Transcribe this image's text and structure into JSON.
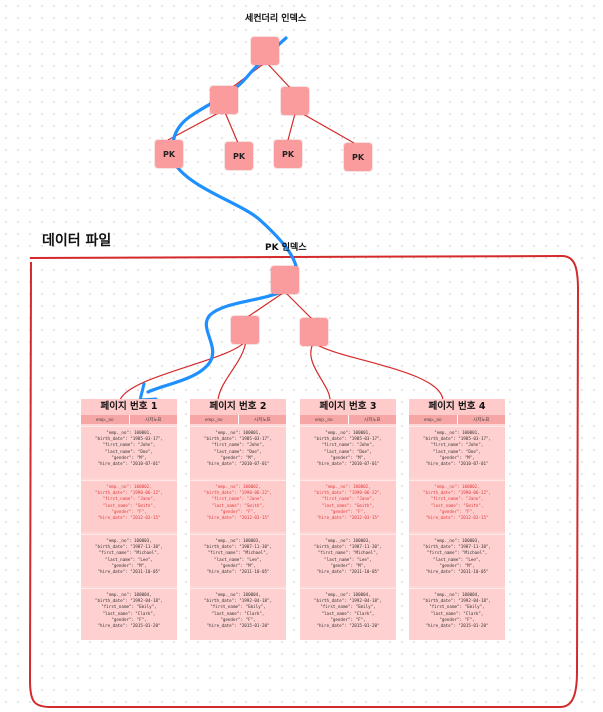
{
  "titles": {
    "secondary_index": "세컨더리 인덱스",
    "data_file": "데이터 파일",
    "pk_index": "PK 인덱스"
  },
  "leaf_label": "PK",
  "colors": {
    "node_fill": "#fa9b9e",
    "tree_line": "#d42a2a",
    "frame": "#d42a2a",
    "access_path": "#1e90ff",
    "page_bg": "#ffd6d6"
  },
  "column_headers": [
    "emp._no",
    "시저노표"
  ],
  "pages": [
    {
      "title": "페이지 번호 1"
    },
    {
      "title": "페이지 번호 2"
    },
    {
      "title": "페이지 번호 3"
    },
    {
      "title": "페이지 번호 4"
    }
  ],
  "records": [
    [
      "\"emp._no\": 100001,",
      "\"birth_date\": \"1985-03-17\",",
      "\"first_name\": \"John\",",
      "\"last_name\": \"Doe\",",
      "\"gender\": \"M\",",
      "\"hire_date\": \"2010-07-01\""
    ],
    [
      "\"emp._no\": 100002,",
      "\"birth_date\": \"1990-06-22\",",
      "\"first_name\": \"Jane\",",
      "\"last_name\": \"Smith\",",
      "\"gender\": \"F\",",
      "\"hire_date\": \"2012-03-15\""
    ],
    [
      "\"emp._no\": 100003,",
      "\"birth_date\": \"1987-11-30\",",
      "\"first_name\": \"Michael\",",
      "\"last_name\": \"Lee\",",
      "\"gender\": \"M\",",
      "\"hire_date\": \"2011-10-05\""
    ],
    [
      "\"emp._no\": 100004,",
      "\"birth_date\": \"1992-04-18\",",
      "\"first_name\": \"Emily\",",
      "\"last_name\": \"Clark\",",
      "\"gender\": \"F\",",
      "\"hire_date\": \"2015-01-20\""
    ]
  ]
}
